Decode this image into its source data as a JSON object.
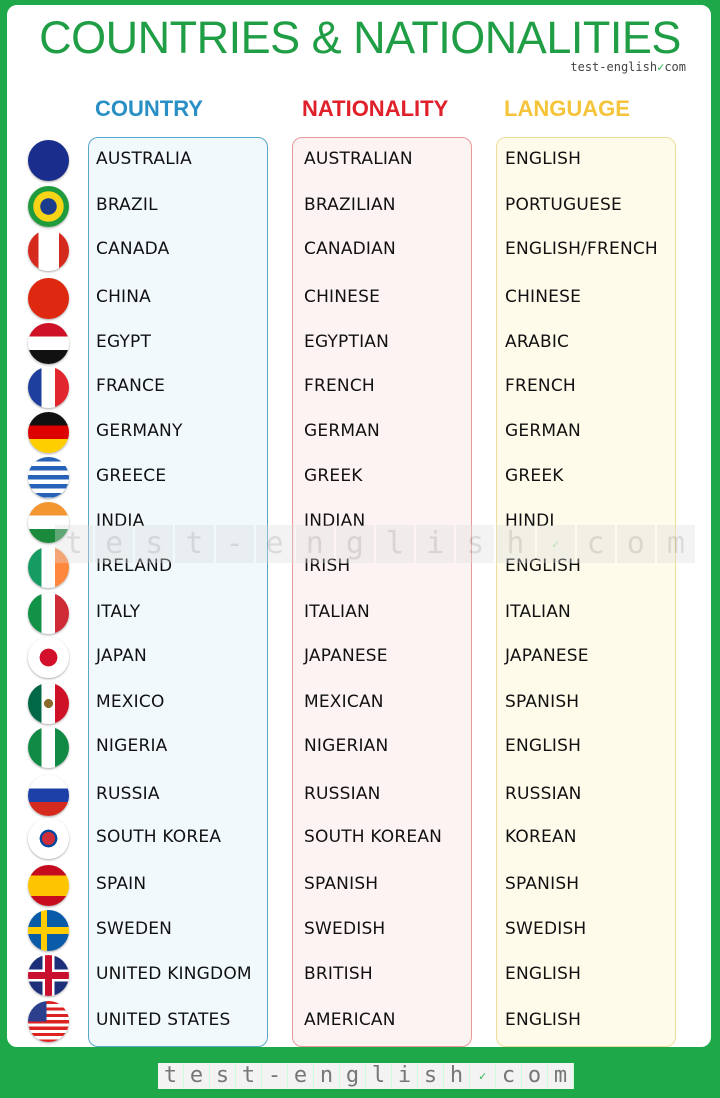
{
  "title": "COUNTRIES & NATIONALITIES",
  "brand": {
    "text": "test-english",
    "check": "✓",
    "suffix": "com"
  },
  "headers": {
    "country": "COUNTRY",
    "nationality": "NATIONALITY",
    "language": "LANGUAGE"
  },
  "colors": {
    "green": "#1fa84a",
    "country": "#2a8fc4",
    "nationality": "#e0202a",
    "language": "#f5c43a"
  },
  "rows": [
    {
      "flag": "australia-flag-icon",
      "country": "AUSTRALIA",
      "nationality": "AUSTRALIAN",
      "language": "ENGLISH"
    },
    {
      "flag": "brazil-flag-icon",
      "country": "BRAZIL",
      "nationality": "BRAZILIAN",
      "language": "PORTUGUESE"
    },
    {
      "flag": "canada-flag-icon",
      "country": "CANADA",
      "nationality": "CANADIAN",
      "language": "ENGLISH/FRENCH"
    },
    {
      "flag": "china-flag-icon",
      "country": "CHINA",
      "nationality": "CHINESE",
      "language": "CHINESE"
    },
    {
      "flag": "egypt-flag-icon",
      "country": "EGYPT",
      "nationality": "EGYPTIAN",
      "language": "ARABIC"
    },
    {
      "flag": "france-flag-icon",
      "country": "FRANCE",
      "nationality": "FRENCH",
      "language": "FRENCH"
    },
    {
      "flag": "germany-flag-icon",
      "country": "GERMANY",
      "nationality": "GERMAN",
      "language": "GERMAN"
    },
    {
      "flag": "greece-flag-icon",
      "country": "GREECE",
      "nationality": "GREEK",
      "language": "GREEK"
    },
    {
      "flag": "india-flag-icon",
      "country": "INDIA",
      "nationality": "INDIAN",
      "language": "HINDI"
    },
    {
      "flag": "ireland-flag-icon",
      "country": "IRELAND",
      "nationality": "IRISH",
      "language": "ENGLISH"
    },
    {
      "flag": "italy-flag-icon",
      "country": "ITALY",
      "nationality": "ITALIAN",
      "language": "ITALIAN"
    },
    {
      "flag": "japan-flag-icon",
      "country": "JAPAN",
      "nationality": "JAPANESE",
      "language": "JAPANESE"
    },
    {
      "flag": "mexico-flag-icon",
      "country": "MEXICO",
      "nationality": "MEXICAN",
      "language": "SPANISH"
    },
    {
      "flag": "nigeria-flag-icon",
      "country": "NIGERIA",
      "nationality": "NIGERIAN",
      "language": "ENGLISH"
    },
    {
      "flag": "russia-flag-icon",
      "country": "RUSSIA",
      "nationality": "RUSSIAN",
      "language": "RUSSIAN"
    },
    {
      "flag": "south-korea-flag-icon",
      "country": "SOUTH KOREA",
      "nationality": "SOUTH KOREAN",
      "language": "KOREAN"
    },
    {
      "flag": "spain-flag-icon",
      "country": "SPAIN",
      "nationality": "SPANISH",
      "language": "SPANISH"
    },
    {
      "flag": "sweden-flag-icon",
      "country": "SWEDEN",
      "nationality": "SWEDISH",
      "language": "SWEDISH"
    },
    {
      "flag": "uk-flag-icon",
      "country": "UNITED KINGDOM",
      "nationality": "BRITISH",
      "language": "ENGLISH"
    },
    {
      "flag": "usa-flag-icon",
      "country": "UNITED STATES",
      "nationality": "AMERICAN",
      "language": "ENGLISH"
    }
  ],
  "watermark": [
    "t",
    "e",
    "s",
    "t",
    "-",
    "e",
    "n",
    "g",
    "l",
    "i",
    "s",
    "h",
    "✓",
    "c",
    "o",
    "m"
  ],
  "footer": [
    "t",
    "e",
    "s",
    "t",
    "-",
    "e",
    "n",
    "g",
    "l",
    "i",
    "s",
    "h",
    "✓",
    "c",
    "o",
    "m"
  ]
}
